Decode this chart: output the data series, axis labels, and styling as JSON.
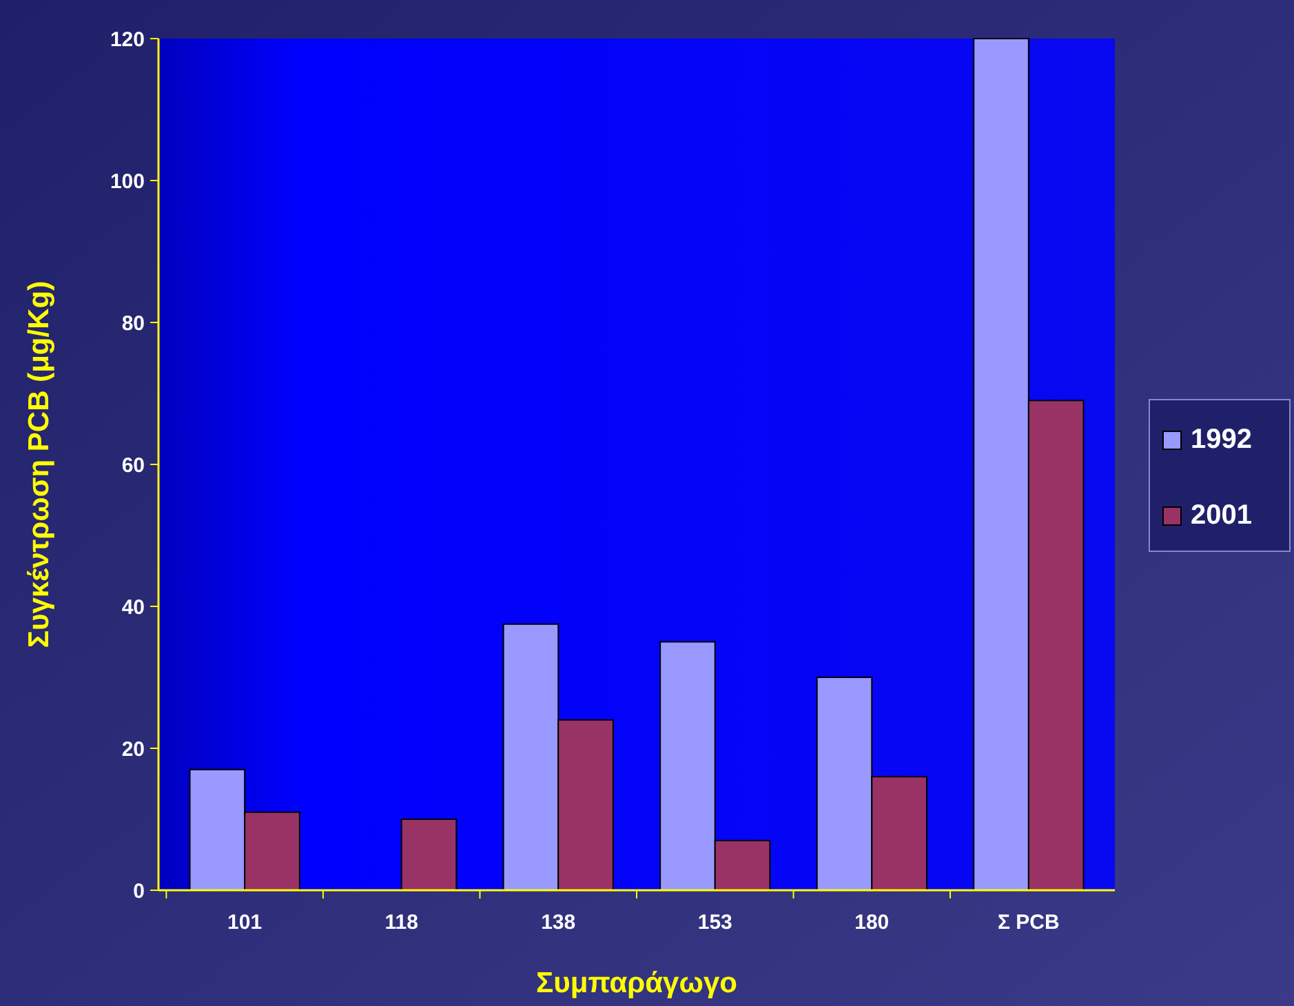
{
  "chart_data": {
    "type": "bar",
    "xlabel": "Συμπαράγωγο",
    "ylabel": "Συγκέντρωση PCB (μg/Kg)",
    "categories": [
      "101",
      "118",
      "138",
      "153",
      "180",
      "Σ PCB"
    ],
    "series": [
      {
        "name": "1992",
        "color": "#9999ff",
        "values": [
          17,
          0,
          37.5,
          35,
          30,
          120
        ]
      },
      {
        "name": "2001",
        "color": "#993366",
        "values": [
          11,
          10,
          24,
          7,
          16,
          69
        ]
      }
    ],
    "ylim": [
      0,
      120
    ],
    "yticks": [
      0,
      20,
      40,
      60,
      80,
      100,
      120
    ],
    "legend": "right"
  }
}
